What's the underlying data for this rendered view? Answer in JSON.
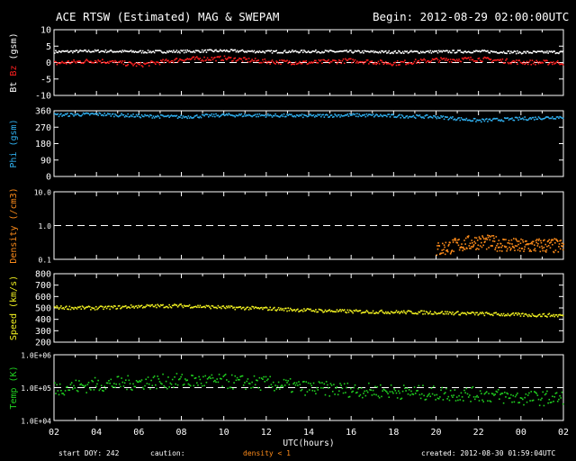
{
  "header": {
    "title": "ACE RTSW (Estimated) MAG & SWEPAM",
    "begin": "Begin: 2012-08-29 02:00:00UTC"
  },
  "footer": {
    "start_doy": "start DOY: 242",
    "caution": "caution:",
    "density_note": "density < 1",
    "created": "created: 2012-08-30 01:59:04UTC"
  },
  "colors": {
    "bt": "#ffffff",
    "bz": "#ff2020",
    "phi": "#30b0f0",
    "density": "#ff8c1a",
    "speed": "#f0f020",
    "temp": "#20d020",
    "axis": "#ffffff"
  },
  "chart_data": [
    {
      "type": "scatter",
      "panel": "mag-bt-bz",
      "ylabel_parts": [
        "Bt",
        "Bz",
        "(gsm)"
      ],
      "ylim": [
        -10,
        10
      ],
      "yticks": [
        "10",
        "5",
        "0",
        "-5",
        "-10"
      ],
      "reference_line": 0,
      "series": [
        {
          "name": "Bt",
          "x": [
            2,
            4,
            6,
            8,
            10,
            12,
            14,
            16,
            18,
            20,
            22,
            24,
            26
          ],
          "values": [
            3.5,
            3.7,
            3.5,
            3.6,
            3.8,
            3.5,
            3.6,
            3.5,
            3.4,
            3.5,
            3.6,
            3.3,
            3.4
          ]
        },
        {
          "name": "Bz",
          "x": [
            2,
            4,
            6,
            8,
            10,
            12,
            14,
            16,
            18,
            20,
            22,
            24,
            26
          ],
          "values": [
            0,
            0.8,
            -0.5,
            1.2,
            1.5,
            0.5,
            0.2,
            0.8,
            0,
            1,
            1.3,
            0.3,
            0.2
          ]
        }
      ]
    },
    {
      "type": "scatter",
      "panel": "mag-phi",
      "ylabel": "Phi (gsm)",
      "ylim": [
        0,
        360
      ],
      "yticks": [
        "360",
        "270",
        "180",
        "90",
        "0"
      ],
      "series": [
        {
          "name": "Phi",
          "x": [
            2,
            4,
            6,
            8,
            10,
            12,
            14,
            16,
            18,
            20,
            22,
            24,
            26
          ],
          "values": [
            340,
            345,
            335,
            330,
            340,
            338,
            335,
            340,
            335,
            330,
            310,
            320,
            330
          ]
        }
      ]
    },
    {
      "type": "scatter",
      "panel": "density",
      "ylabel": "Density (/cm3)",
      "scale": "log",
      "ylim": [
        0.1,
        10.0
      ],
      "yticks": [
        "10.0",
        "1.0",
        "0.1"
      ],
      "reference_line": 1.0,
      "series": [
        {
          "name": "Density",
          "x": [
            20,
            21,
            22,
            23,
            24,
            25,
            26
          ],
          "values": [
            0.2,
            0.28,
            0.35,
            0.3,
            0.25,
            0.27,
            0.25
          ]
        }
      ]
    },
    {
      "type": "scatter",
      "panel": "speed",
      "ylabel": "Speed (km/s)",
      "ylim": [
        200,
        800
      ],
      "yticks": [
        "800",
        "700",
        "600",
        "500",
        "400",
        "300",
        "200"
      ],
      "series": [
        {
          "name": "Speed",
          "x": [
            2,
            4,
            6,
            8,
            10,
            12,
            14,
            16,
            18,
            20,
            22,
            24,
            26
          ],
          "values": [
            510,
            505,
            520,
            525,
            510,
            500,
            485,
            475,
            470,
            465,
            455,
            445,
            440
          ]
        }
      ]
    },
    {
      "type": "scatter",
      "panel": "temp",
      "ylabel": "Temp (K)",
      "scale": "log",
      "ylim": [
        10000,
        1000000
      ],
      "yticks": [
        "1.0E+06",
        "1.0E+05",
        "1.0E+04"
      ],
      "reference_line": 100000,
      "series": [
        {
          "name": "Temp",
          "x": [
            2,
            4,
            6,
            8,
            10,
            12,
            14,
            16,
            18,
            20,
            22,
            24,
            26
          ],
          "values": [
            100000,
            130000,
            150000,
            170000,
            160000,
            140000,
            100000,
            90000,
            80000,
            70000,
            65000,
            50000,
            50000
          ]
        }
      ]
    }
  ],
  "xaxis": {
    "label": "UTC(hours)",
    "ticks": [
      "02",
      "04",
      "06",
      "08",
      "10",
      "12",
      "14",
      "16",
      "18",
      "20",
      "22",
      "00",
      "02"
    ],
    "range": [
      2,
      26
    ]
  }
}
